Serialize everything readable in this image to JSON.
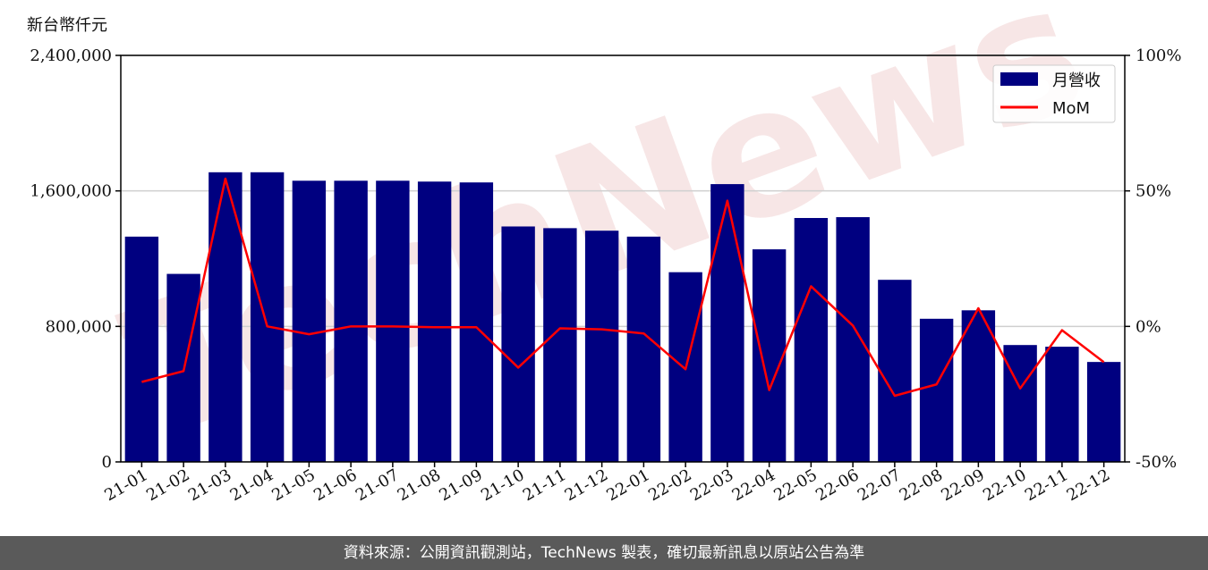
{
  "chart_data": {
    "type": "bar",
    "unit_label": "新台幣仟元",
    "categories": [
      "21-01",
      "21-02",
      "21-03",
      "21-04",
      "21-05",
      "21-06",
      "21-07",
      "21-08",
      "21-09",
      "21-10",
      "21-11",
      "21-12",
      "22-01",
      "22-02",
      "22-03",
      "22-04",
      "22-05",
      "22-06",
      "22-07",
      "22-08",
      "22-09",
      "22-10",
      "22-11",
      "22-12"
    ],
    "series": [
      {
        "name": "月營收",
        "kind": "bar",
        "axis": "left",
        "color": "#000080",
        "values": [
          1330000,
          1110000,
          1710000,
          1710000,
          1660000,
          1660000,
          1660000,
          1655000,
          1650000,
          1390000,
          1380000,
          1365000,
          1330000,
          1120000,
          1640000,
          1255000,
          1440000,
          1445000,
          1075000,
          845000,
          895000,
          690000,
          680000,
          590000
        ]
      },
      {
        "name": "MoM",
        "kind": "line",
        "axis": "right",
        "color": "#ff0000",
        "values": [
          -20.5,
          -16.5,
          54.5,
          0,
          -2.9,
          0,
          0,
          -0.3,
          -0.3,
          -15.2,
          -0.7,
          -1.1,
          -2.6,
          -15.8,
          46.4,
          -23.5,
          14.8,
          0.3,
          -25.6,
          -21.4,
          6.7,
          -22.9,
          -1.4,
          -13.2
        ]
      }
    ],
    "y_left": {
      "min": 0,
      "max": 2400000,
      "ticks": [
        "0",
        "800,000",
        "1,600,000",
        "2,400,000"
      ]
    },
    "y_right": {
      "min": -50,
      "max": 100,
      "ticks": [
        "-50%",
        "0%",
        "50%",
        "100%"
      ]
    },
    "grid": "horizontal",
    "legend_position": "top-right"
  },
  "watermark": "TechNews",
  "footer": "資料來源：公開資訊觀測站，TechNews 製表，確切最新訊息以原站公告為準"
}
